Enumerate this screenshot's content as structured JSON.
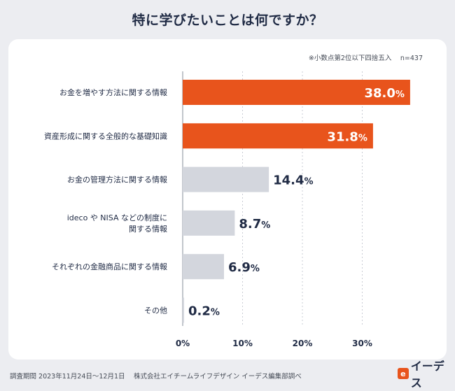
{
  "page": {
    "title": "特に学びたいことは何ですか？",
    "footer": "調査期間 2023年11月24日〜12月1日　 株式会社エイチームライフデザイン イーデス編集部調べ",
    "logo_text": "イーデス",
    "logo_mark": "e"
  },
  "colors": {
    "highlight": "#e8541c",
    "muted": "#d3d6dd",
    "grid": "#c9ccd4",
    "axis": "#9aa0ab",
    "text": "#1f2a44"
  },
  "chart_data": {
    "type": "bar",
    "orientation": "horizontal",
    "title": "特に学びたいことは何ですか？",
    "note": "※小数点第2位以下四捨五入　 n=437",
    "categories": [
      [
        "お金を増やす方法に関する情報"
      ],
      [
        "資産形成に関する全般的な基礎知識"
      ],
      [
        "お金の管理方法に関する情報"
      ],
      [
        "ideco や NISA などの制度に",
        "関する情報"
      ],
      [
        "それぞれの金融商品に関する情報"
      ],
      [
        "その他"
      ]
    ],
    "values": [
      38.0,
      31.8,
      14.4,
      8.7,
      6.9,
      0.2
    ],
    "value_labels": [
      "38.0",
      "31.8",
      "14.4",
      "8.7",
      "6.9",
      "0.2"
    ],
    "unit": "%",
    "highlight": [
      true,
      true,
      false,
      false,
      false,
      false
    ],
    "xlim": [
      0,
      40
    ],
    "xticks": [
      0,
      10,
      20,
      30
    ],
    "xtick_labels": [
      "0%",
      "10%",
      "20%",
      "30%"
    ],
    "grid": true
  }
}
